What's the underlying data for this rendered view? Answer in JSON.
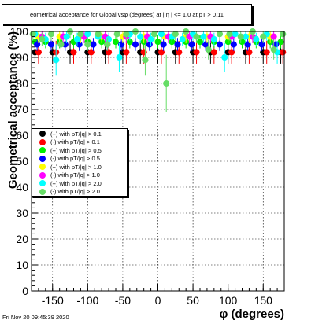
{
  "title": "eometrical acceptance for Global vsφ (degrees) at | η | <= 1.0 at pT > 0.11",
  "footer": "Fri Nov 20 09:45:39 2020",
  "chart_data": {
    "type": "scatter",
    "xlabel": "φ (degrees)",
    "ylabel": "Geometrical acceptance (%)",
    "xlim": [
      -180,
      180
    ],
    "ylim": [
      0,
      100
    ],
    "xticks": [
      -150,
      -100,
      -50,
      0,
      50,
      100,
      150
    ],
    "yticks": [
      0,
      10,
      20,
      30,
      40,
      50,
      60,
      70,
      80,
      90,
      100
    ],
    "grid": true,
    "legend_position": "middle-left",
    "series": [
      {
        "name": "(+) with pT/|q| > 0.1",
        "color": "#000000",
        "x": [
          -175,
          -150,
          -125,
          -100,
          -75,
          -50,
          -25,
          0,
          25,
          50,
          75,
          100,
          125,
          150,
          175
        ],
        "y": [
          92,
          92,
          92,
          92,
          92,
          92,
          92,
          92,
          92,
          92,
          92,
          92,
          92,
          92,
          92
        ]
      },
      {
        "name": "(-) with pT/|q| > 0.1",
        "color": "#ff0000",
        "x": [
          -170,
          -145,
          -120,
          -95,
          -70,
          -45,
          -20,
          5,
          30,
          55,
          80,
          105,
          130,
          155,
          178
        ],
        "y": [
          92,
          92,
          92,
          92,
          92,
          92,
          92,
          92,
          92,
          92,
          92,
          92,
          92,
          92,
          92
        ]
      },
      {
        "name": "(+) with pT/|q| > 0.5",
        "color": "#00ee00",
        "x": [
          -175,
          -160,
          -140,
          -120,
          -100,
          -80,
          -60,
          -40,
          -20,
          0,
          20,
          40,
          60,
          80,
          100,
          120,
          140,
          160,
          175
        ],
        "y": [
          96,
          96,
          96,
          96,
          96,
          96,
          96,
          96,
          96,
          96,
          96,
          96,
          96,
          96,
          96,
          96,
          96,
          96,
          96
        ]
      },
      {
        "name": "(-) with pT/|q| > 0.5",
        "color": "#0000ff",
        "x": [
          -172,
          -152,
          -132,
          -112,
          -92,
          -72,
          -52,
          -32,
          -12,
          8,
          28,
          48,
          68,
          88,
          108,
          128,
          148,
          168
        ],
        "y": [
          95,
          95,
          95,
          95,
          95,
          95,
          95,
          95,
          95,
          95,
          95,
          95,
          95,
          95,
          95,
          95,
          95,
          95
        ]
      },
      {
        "name": "(+) with pT/|q| > 1.0",
        "color": "#ffff00",
        "x": [
          -170,
          -140,
          -110,
          -80,
          -50,
          -20,
          10,
          40,
          70,
          100,
          130,
          160
        ],
        "y": [
          98,
          98,
          98,
          98,
          98,
          98,
          98,
          98,
          98,
          98,
          98,
          98
        ]
      },
      {
        "name": "(-) with pT/|q| > 1.0",
        "color": "#ff00ff",
        "x": [
          -165,
          -135,
          -105,
          -75,
          -45,
          -15,
          15,
          45,
          75,
          105,
          135,
          165
        ],
        "y": [
          98,
          98,
          98,
          98,
          98,
          98,
          98,
          98,
          98,
          98,
          98,
          98
        ]
      },
      {
        "name": "(+) with pT/|q| > 2.0",
        "color": "#00ffff",
        "x": [
          -175,
          -160,
          -145,
          -130,
          -115,
          -100,
          -85,
          -70,
          -55,
          -40,
          -25,
          -10,
          5,
          20,
          35,
          50,
          65,
          80,
          95,
          110,
          125,
          140,
          155,
          170
        ],
        "y": [
          99,
          97,
          89,
          98,
          97,
          99,
          98,
          97,
          90,
          99,
          98,
          97,
          99,
          98,
          97,
          99,
          98,
          97,
          90,
          99,
          98,
          97,
          99,
          92
        ]
      },
      {
        "name": "(-) with pT/|q| > 2.0",
        "color": "#66dd66",
        "x": [
          -178,
          -165,
          -152,
          -138,
          -125,
          -110,
          -100,
          -85,
          -72,
          -58,
          -45,
          -32,
          -18,
          -5,
          12,
          25,
          40,
          55,
          72,
          88,
          102,
          118,
          135,
          150,
          165,
          178
        ],
        "y": [
          99,
          97,
          99,
          95,
          100,
          99,
          95,
          99,
          95,
          99,
          99,
          100,
          89,
          99,
          80,
          99,
          100,
          98,
          93,
          99,
          99,
          98,
          100,
          98,
          93,
          99
        ]
      }
    ]
  }
}
